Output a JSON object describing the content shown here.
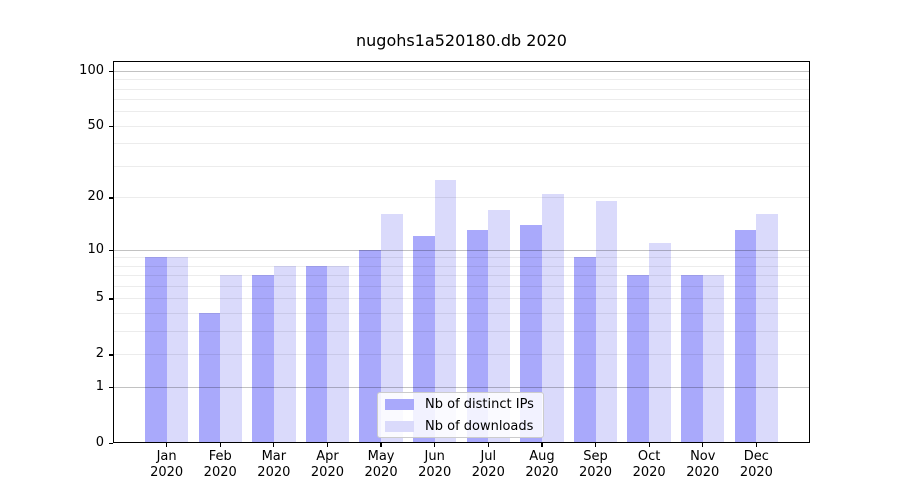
{
  "title": "nugohs1a520180.db 2020",
  "chart_data": {
    "type": "bar",
    "title": "nugohs1a520180.db 2020",
    "y_scale": "log10(1+y)",
    "categories": [
      "Jan",
      "Feb",
      "Mar",
      "Apr",
      "May",
      "Jun",
      "Jul",
      "Aug",
      "Sep",
      "Oct",
      "Nov",
      "Dec"
    ],
    "category_year": "2020",
    "series": [
      {
        "name": "Nb of distinct IPs",
        "color": "#a9a9fb",
        "values": [
          9,
          4,
          7,
          8,
          10,
          12,
          13,
          14,
          9,
          7,
          7,
          13
        ]
      },
      {
        "name": "Nb of downloads",
        "color": "#dadafb",
        "values": [
          9,
          7,
          8,
          8,
          16,
          25,
          17,
          21,
          19,
          11,
          7,
          16
        ]
      }
    ],
    "yticks": [
      "0",
      "1",
      "2",
      "5",
      "10",
      "20",
      "50",
      "100"
    ],
    "ylim": [
      0,
      113
    ],
    "grid_major_values": [
      1,
      10,
      100
    ],
    "grid_minor_values": [
      2,
      3,
      4,
      5,
      6,
      7,
      8,
      9,
      20,
      30,
      40,
      50,
      60,
      70,
      80,
      90
    ],
    "legend_position": "inside-bottom-center",
    "colors": {
      "bar_distinct_ips": "#a9a9fb",
      "bar_downloads": "#dadafb",
      "grid_major": "#c2c2c2",
      "grid_minor": "#ececec",
      "axis": "#000000",
      "text": "#000000"
    }
  }
}
